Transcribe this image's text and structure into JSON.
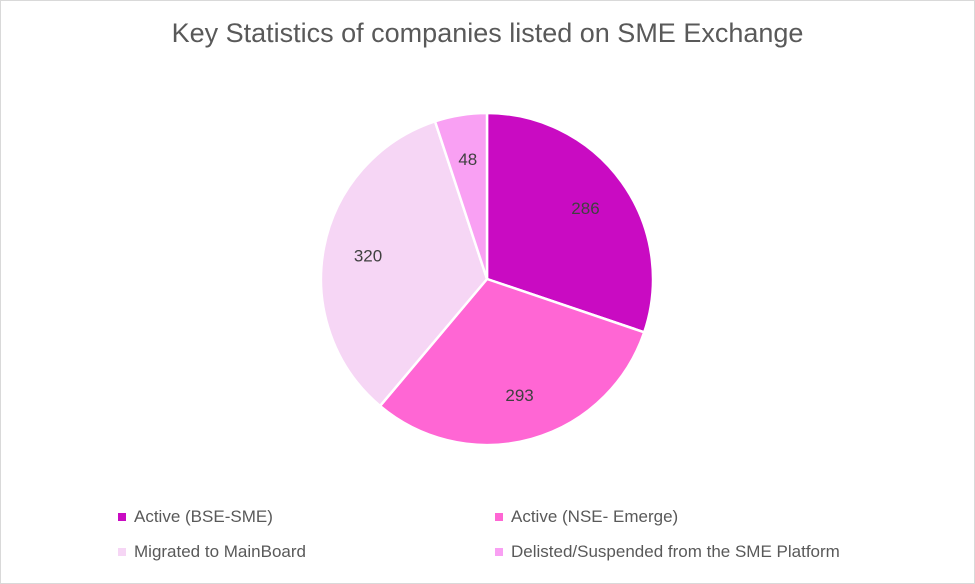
{
  "chart_data": {
    "type": "pie",
    "title": "Key Statistics of companies listed on SME Exchange",
    "slices": [
      {
        "label": "Active (BSE-SME)",
        "value": 286,
        "color": "#c90bc2"
      },
      {
        "label": "Active (NSE- Emerge)",
        "value": 293,
        "color": "#ff66d4"
      },
      {
        "label": "Migrated to MainBoard",
        "value": 320,
        "color": "#f6d6f5"
      },
      {
        "label": "Delisted/Suspended from the SME Platform",
        "value": 48,
        "color": "#f9a0f3"
      }
    ],
    "legend_position": "bottom",
    "data_labels": true
  }
}
